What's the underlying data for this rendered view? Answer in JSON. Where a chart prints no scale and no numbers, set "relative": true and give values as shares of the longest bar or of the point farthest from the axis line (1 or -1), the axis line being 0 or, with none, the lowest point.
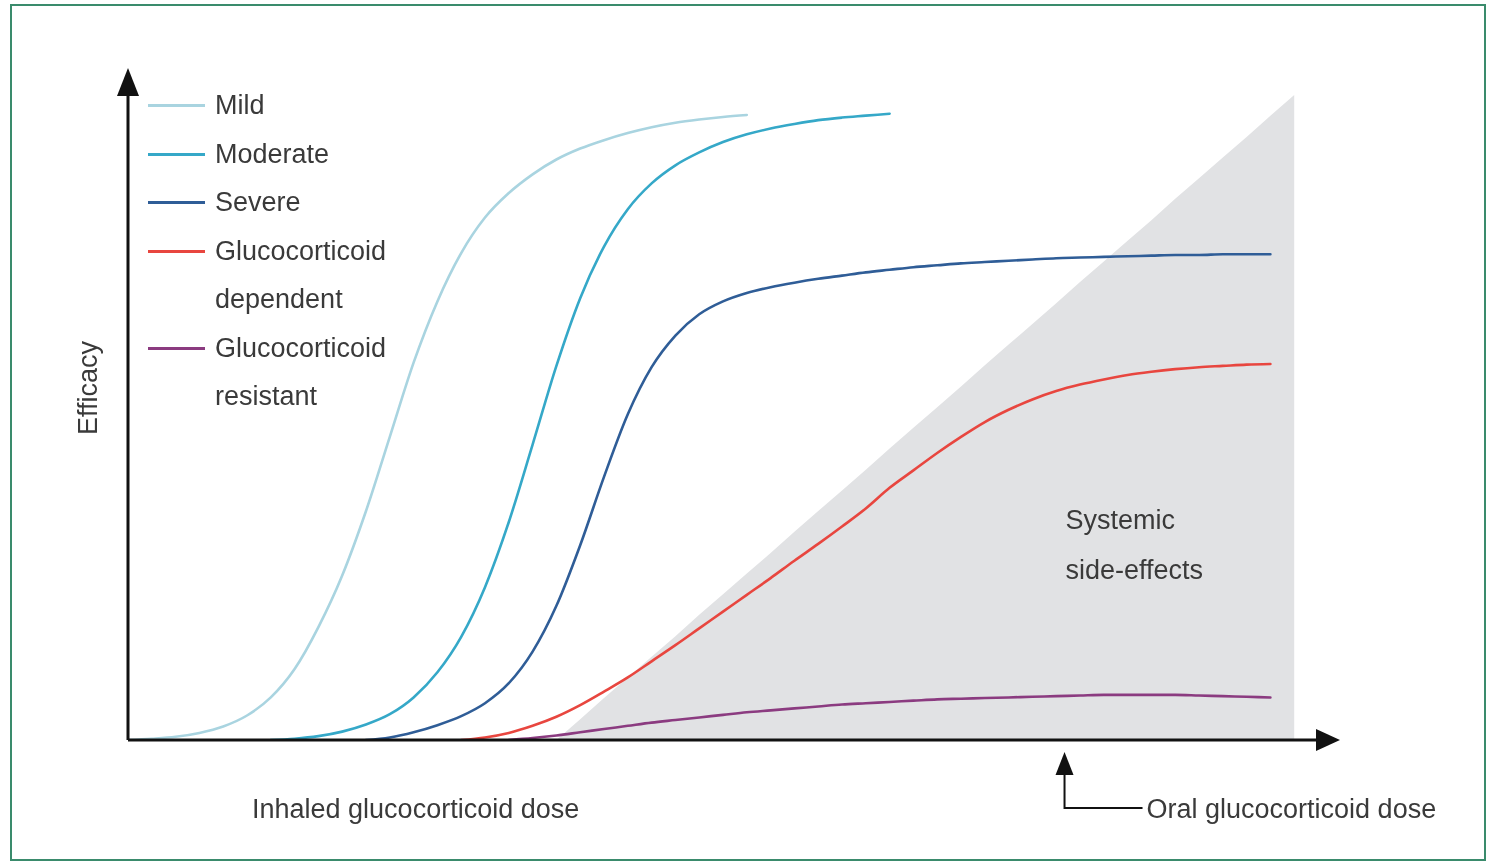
{
  "chart_data": {
    "type": "line",
    "relative": true,
    "xlabel": "Inhaled glucocorticoid dose",
    "ylabel": "Efficacy",
    "annotations": [
      "Oral glucocorticoid dose"
    ],
    "legend": "top left",
    "categories": [
      null,
      null,
      null,
      null,
      null,
      null,
      null,
      null,
      null,
      null,
      null,
      null,
      null,
      null,
      null,
      null,
      null,
      null,
      null,
      null,
      null,
      null,
      null,
      null,
      null,
      null,
      null,
      null,
      null,
      null,
      null,
      null,
      null,
      null,
      null,
      null,
      null,
      null,
      null,
      null,
      null,
      null,
      null,
      null,
      null,
      null,
      null,
      null,
      null,
      null,
      null
    ],
    "series": [
      {
        "name": "Systemic side-effects",
        "type": "area",
        "color": "#e1e2e4",
        "values": [
          null,
          null,
          null,
          null,
          null,
          null,
          null,
          null,
          null,
          null,
          null,
          null,
          null,
          null,
          null,
          null,
          null,
          null,
          0,
          0.032,
          0.065,
          0.097,
          0.129,
          0.161,
          0.194,
          0.226,
          0.258,
          0.29,
          0.323,
          0.355,
          0.387,
          0.419,
          0.452,
          0.484,
          0.516,
          0.548,
          0.581,
          0.613,
          0.645,
          0.677,
          0.71,
          0.742,
          0.774,
          0.806,
          0.839,
          0.871,
          0.903,
          0.935,
          0.968,
          1,
          null
        ]
      },
      {
        "name": "Mild",
        "color": "#a9d4e0",
        "values": [
          0,
          0.002,
          0.005,
          0.011,
          0.021,
          0.038,
          0.066,
          0.11,
          0.175,
          0.255,
          0.355,
          0.47,
          0.585,
          0.68,
          0.755,
          0.81,
          0.848,
          0.877,
          0.9,
          0.917,
          0.93,
          0.941,
          0.95,
          0.957,
          0.962,
          0.966,
          0.969,
          null,
          null,
          null,
          null,
          null,
          null,
          null,
          null,
          null,
          null,
          null,
          null,
          null,
          null,
          null,
          null,
          null,
          null,
          null,
          null,
          null,
          null,
          null,
          null
        ]
      },
      {
        "name": "Moderate",
        "color": "#35a8c8",
        "values": [
          null,
          null,
          null,
          null,
          null,
          null,
          0,
          0.002,
          0.006,
          0.013,
          0.024,
          0.04,
          0.066,
          0.105,
          0.16,
          0.237,
          0.338,
          0.458,
          0.58,
          0.685,
          0.765,
          0.823,
          0.863,
          0.891,
          0.911,
          0.927,
          0.939,
          0.948,
          0.955,
          0.961,
          0.965,
          0.968,
          0.971,
          null,
          null,
          null,
          null,
          null,
          null,
          null,
          null,
          null,
          null,
          null,
          null,
          null,
          null,
          null,
          null,
          null,
          null
        ]
      },
      {
        "name": "Severe",
        "color": "#2f5d97",
        "values": [
          null,
          null,
          null,
          null,
          null,
          null,
          null,
          null,
          null,
          null,
          0,
          0.004,
          0.012,
          0.023,
          0.037,
          0.057,
          0.088,
          0.137,
          0.208,
          0.302,
          0.408,
          0.505,
          0.578,
          0.627,
          0.66,
          0.68,
          0.693,
          0.702,
          0.709,
          0.715,
          0.72,
          0.725,
          0.729,
          0.733,
          0.736,
          0.739,
          0.741,
          0.743,
          0.745,
          0.747,
          0.748,
          0.749,
          0.75,
          0.751,
          0.752,
          0.752,
          0.753,
          0.753,
          0.753,
          null,
          null
        ]
      },
      {
        "name": "Glucocorticoid dependent",
        "color": "#e8463f",
        "values": [
          null,
          null,
          null,
          null,
          null,
          null,
          null,
          null,
          null,
          null,
          null,
          null,
          null,
          null,
          0,
          0.004,
          0.011,
          0.022,
          0.036,
          0.054,
          0.075,
          0.097,
          0.122,
          0.147,
          0.173,
          0.199,
          0.225,
          0.251,
          0.278,
          0.304,
          0.331,
          0.359,
          0.391,
          0.418,
          0.445,
          0.47,
          0.493,
          0.512,
          0.528,
          0.541,
          0.551,
          0.559,
          0.566,
          0.571,
          0.575,
          0.578,
          0.58,
          0.582,
          0.583,
          null,
          null
        ]
      },
      {
        "name": "Glucocorticoid resistant",
        "color": "#8b3b80",
        "values": [
          null,
          null,
          null,
          null,
          null,
          null,
          null,
          null,
          null,
          null,
          null,
          null,
          null,
          null,
          null,
          null,
          0,
          0.003,
          0.007,
          0.012,
          0.017,
          0.022,
          0.027,
          0.031,
          0.035,
          0.039,
          0.043,
          0.046,
          0.049,
          0.052,
          0.055,
          0.057,
          0.059,
          0.061,
          0.063,
          0.064,
          0.065,
          0.066,
          0.067,
          0.068,
          0.069,
          0.07,
          0.07,
          0.07,
          0.07,
          0.069,
          0.068,
          0.067,
          0.066,
          null,
          null
        ]
      }
    ]
  }
}
